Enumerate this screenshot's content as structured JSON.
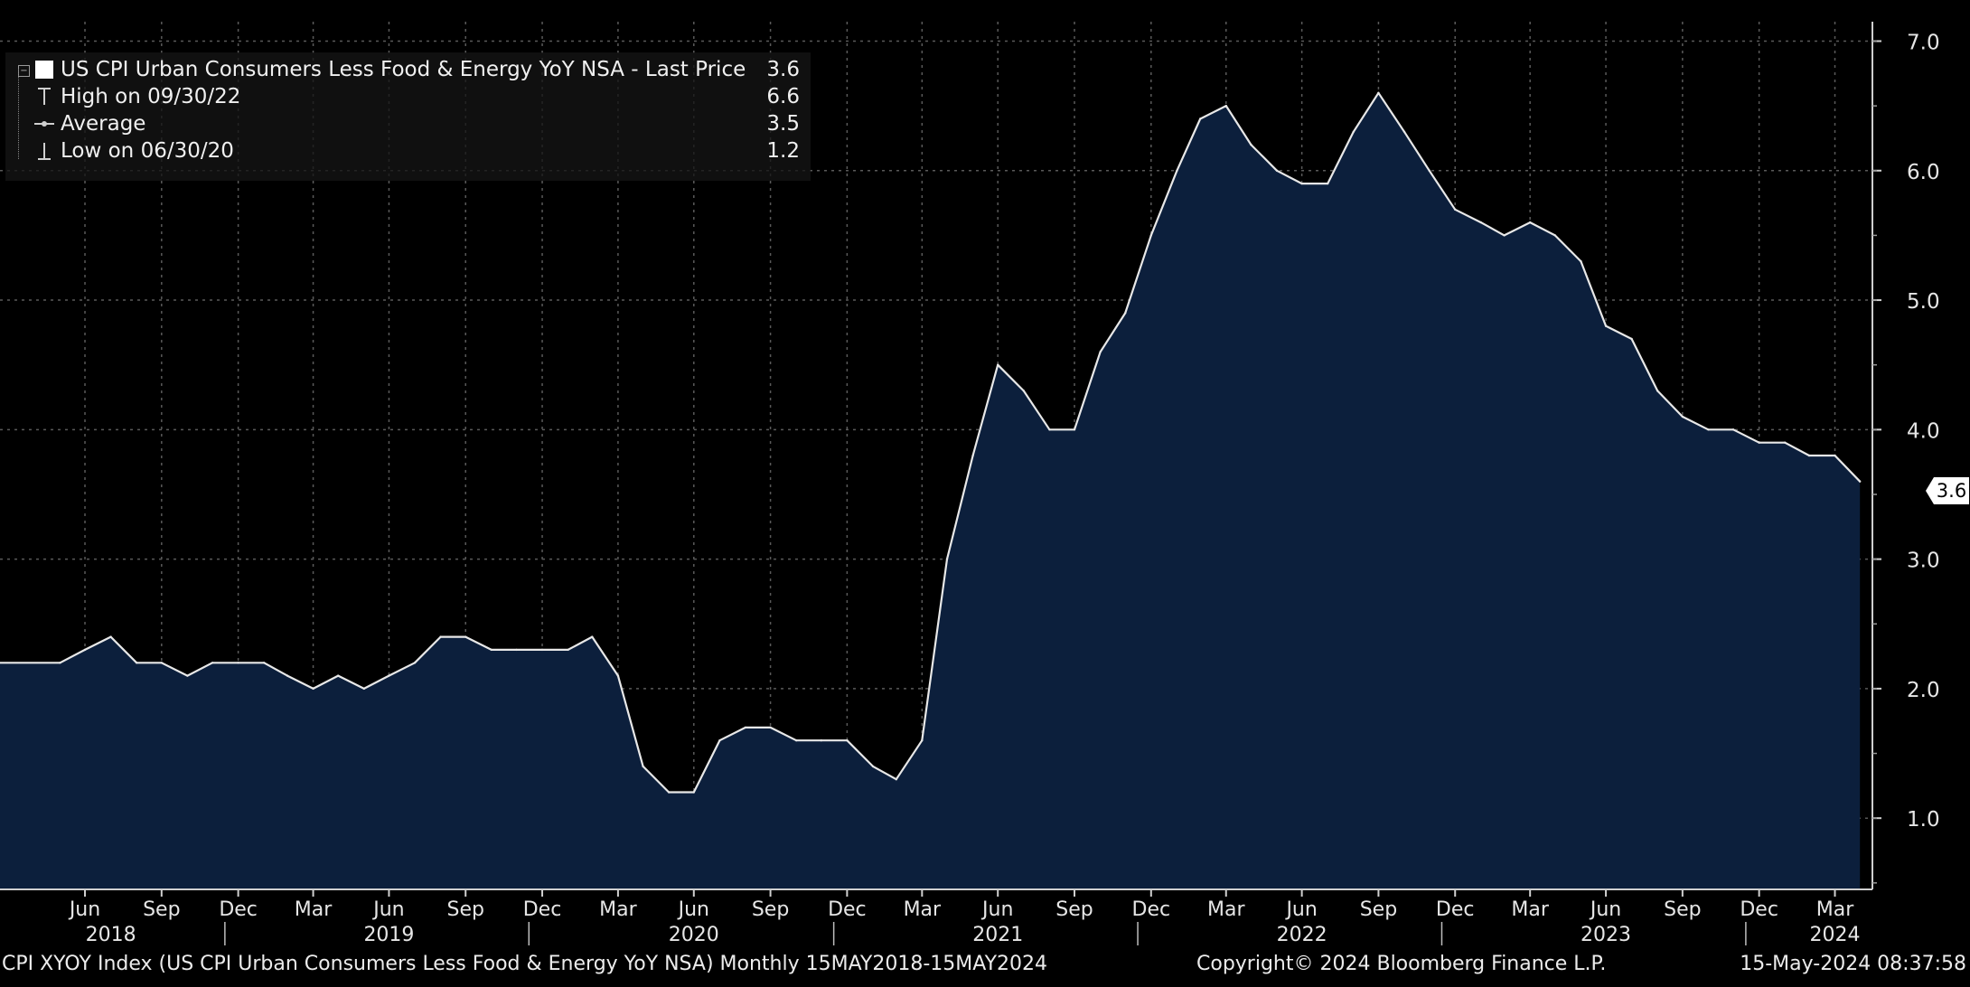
{
  "legend": {
    "title": "US CPI Urban Consumers Less Food & Energy YoY NSA - Last Price",
    "last_value": "3.6",
    "high_label": "High on 09/30/22",
    "high_value": "6.6",
    "avg_label": "Average",
    "avg_value": "3.5",
    "low_label": "Low on 06/30/20",
    "low_value": "1.2"
  },
  "footer": {
    "ticker": "CPI XYOY Index (US CPI Urban Consumers Less Food & Energy YoY NSA)  Monthly 15MAY2018-15MAY2024",
    "copyright": "Copyright© 2024 Bloomberg Finance L.P.",
    "timestamp": "15-May-2024 08:37:58"
  },
  "last_price_tag": "3.6",
  "colors": {
    "background": "#000000",
    "area_fill": "#0c1f3c",
    "line": "#e8e8e8",
    "grid": "#5a5a5a"
  },
  "chart_data": {
    "type": "area",
    "title": "",
    "xlabel": "",
    "ylabel": "",
    "x": [
      "2018-05-31",
      "2018-06-30",
      "2018-07-31",
      "2018-08-31",
      "2018-09-30",
      "2018-10-31",
      "2018-11-30",
      "2018-12-31",
      "2019-01-31",
      "2019-02-28",
      "2019-03-31",
      "2019-04-30",
      "2019-05-31",
      "2019-06-30",
      "2019-07-31",
      "2019-08-31",
      "2019-09-30",
      "2019-10-31",
      "2019-11-30",
      "2019-12-31",
      "2020-01-31",
      "2020-02-29",
      "2020-03-31",
      "2020-04-30",
      "2020-05-31",
      "2020-06-30",
      "2020-07-31",
      "2020-08-31",
      "2020-09-30",
      "2020-10-31",
      "2020-11-30",
      "2020-12-31",
      "2021-01-31",
      "2021-02-28",
      "2021-03-31",
      "2021-04-30",
      "2021-05-31",
      "2021-06-30",
      "2021-07-31",
      "2021-08-31",
      "2021-09-30",
      "2021-10-31",
      "2021-11-30",
      "2021-12-31",
      "2022-01-31",
      "2022-02-28",
      "2022-03-31",
      "2022-04-30",
      "2022-05-31",
      "2022-06-30",
      "2022-07-31",
      "2022-08-31",
      "2022-09-30",
      "2022-10-31",
      "2022-11-30",
      "2022-12-31",
      "2023-01-31",
      "2023-02-28",
      "2023-03-31",
      "2023-04-30",
      "2023-05-31",
      "2023-06-30",
      "2023-07-31",
      "2023-08-31",
      "2023-09-30",
      "2023-10-31",
      "2023-11-30",
      "2023-12-31",
      "2024-01-31",
      "2024-02-29",
      "2024-03-31",
      "2024-04-30"
    ],
    "series": [
      {
        "name": "US CPI Urban Consumers Less Food & Energy YoY NSA",
        "values": [
          2.2,
          2.3,
          2.4,
          2.2,
          2.2,
          2.1,
          2.2,
          2.2,
          2.2,
          2.1,
          2.0,
          2.1,
          2.0,
          2.1,
          2.2,
          2.4,
          2.4,
          2.3,
          2.3,
          2.3,
          2.3,
          2.4,
          2.1,
          1.4,
          1.2,
          1.2,
          1.6,
          1.7,
          1.7,
          1.6,
          1.6,
          1.6,
          1.4,
          1.3,
          1.6,
          3.0,
          3.8,
          4.5,
          4.3,
          4.0,
          4.0,
          4.6,
          4.9,
          5.5,
          6.0,
          6.4,
          6.5,
          6.2,
          6.0,
          5.9,
          5.9,
          6.3,
          6.6,
          6.3,
          6.0,
          5.7,
          5.6,
          5.5,
          5.6,
          5.5,
          5.3,
          4.8,
          4.7,
          4.3,
          4.1,
          4.0,
          4.0,
          3.9,
          3.9,
          3.8,
          3.8,
          3.6
        ]
      }
    ],
    "yticks": [
      "1.0",
      "2.0",
      "3.0",
      "4.0",
      "5.0",
      "6.0",
      "7.0"
    ],
    "ylim": [
      0.45,
      7.15
    ],
    "xticks": [
      {
        "date": "2018-06-30",
        "label": "Jun"
      },
      {
        "date": "2018-09-30",
        "label": "Sep"
      },
      {
        "date": "2018-12-31",
        "label": "Dec"
      },
      {
        "date": "2019-03-31",
        "label": "Mar"
      },
      {
        "date": "2019-06-30",
        "label": "Jun"
      },
      {
        "date": "2019-09-30",
        "label": "Sep"
      },
      {
        "date": "2019-12-31",
        "label": "Dec"
      },
      {
        "date": "2020-03-31",
        "label": "Mar"
      },
      {
        "date": "2020-06-30",
        "label": "Jun"
      },
      {
        "date": "2020-09-30",
        "label": "Sep"
      },
      {
        "date": "2020-12-31",
        "label": "Dec"
      },
      {
        "date": "2021-03-31",
        "label": "Mar"
      },
      {
        "date": "2021-06-30",
        "label": "Jun"
      },
      {
        "date": "2021-09-30",
        "label": "Sep"
      },
      {
        "date": "2021-12-31",
        "label": "Dec"
      },
      {
        "date": "2022-03-31",
        "label": "Mar"
      },
      {
        "date": "2022-06-30",
        "label": "Jun"
      },
      {
        "date": "2022-09-30",
        "label": "Sep"
      },
      {
        "date": "2022-12-31",
        "label": "Dec"
      },
      {
        "date": "2023-03-31",
        "label": "Mar"
      },
      {
        "date": "2023-06-30",
        "label": "Jun"
      },
      {
        "date": "2023-09-30",
        "label": "Sep"
      },
      {
        "date": "2023-12-31",
        "label": "Dec"
      },
      {
        "date": "2024-03-31",
        "label": "Mar"
      }
    ],
    "year_labels": [
      {
        "date": "2018-07-31",
        "label": "2018"
      },
      {
        "date": "2019-06-30",
        "label": "2019"
      },
      {
        "date": "2020-06-30",
        "label": "2020"
      },
      {
        "date": "2021-06-30",
        "label": "2021"
      },
      {
        "date": "2022-06-30",
        "label": "2022"
      },
      {
        "date": "2023-06-30",
        "label": "2023"
      },
      {
        "date": "2024-03-31",
        "label": "2024"
      }
    ],
    "year_separators": [
      "2018-12-15",
      "2019-12-15",
      "2020-12-15",
      "2021-12-15",
      "2022-12-15",
      "2023-12-15"
    ],
    "grid": true,
    "legend_position": "top-left"
  }
}
